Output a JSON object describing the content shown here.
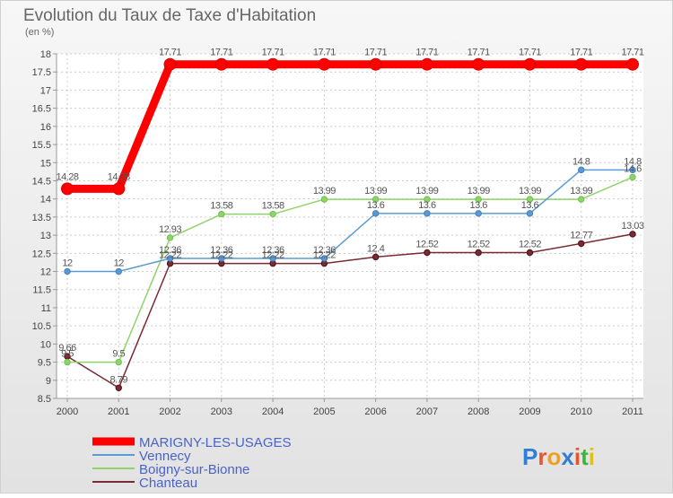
{
  "chart_data": {
    "type": "line",
    "title": "Evolution du Taux de Taxe d'Habitation",
    "subtitle": "(en %)",
    "x": [
      "2000",
      "2001",
      "2002",
      "2003",
      "2004",
      "2005",
      "2006",
      "2007",
      "2008",
      "2009",
      "2010",
      "2011"
    ],
    "yticks": [
      "8.5",
      "9",
      "9.5",
      "10",
      "10.5",
      "11",
      "11.5",
      "12",
      "12.5",
      "13",
      "13.5",
      "14",
      "14.5",
      "15",
      "15.5",
      "16",
      "16.5",
      "17",
      "17.5",
      "18"
    ],
    "ylim": [
      8.5,
      18
    ],
    "grid": true,
    "legend_position": "bottom-left",
    "series": [
      {
        "name": "MARIGNY-LES-USAGES",
        "color": "#ff0000",
        "values": [
          14.28,
          14.28,
          17.71,
          17.71,
          17.71,
          17.71,
          17.71,
          17.71,
          17.71,
          17.71,
          17.71,
          17.71
        ],
        "labels": [
          "14.28",
          "14.28",
          "17.71",
          "17.71",
          "17.71",
          "17.71",
          "17.71",
          "17.71",
          "17.71",
          "17.71",
          "17.71",
          "17.71"
        ]
      },
      {
        "name": "Vennecy",
        "color": "#5b9bd5",
        "values": [
          12,
          12,
          12.36,
          12.36,
          12.36,
          12.36,
          13.6,
          13.6,
          13.6,
          13.6,
          14.8,
          14.8
        ],
        "labels": [
          "12",
          "12",
          "12.36",
          "12.36",
          "12.36",
          "12.36",
          "13.6",
          "13.6",
          "13.6",
          "13.6",
          "14.8",
          "14.8"
        ]
      },
      {
        "name": "Boigny-sur-Bionne",
        "color": "#8fd36b",
        "values": [
          9.5,
          9.5,
          12.93,
          13.58,
          13.58,
          13.99,
          13.99,
          13.99,
          13.99,
          13.99,
          13.99,
          14.6
        ],
        "labels": [
          "9.5",
          "9.5",
          "12.93",
          "13.58",
          "13.58",
          "13.99",
          "13.99",
          "13.99",
          "13.99",
          "13.99",
          "13.99",
          "14.6"
        ]
      },
      {
        "name": "Chanteau",
        "color": "#7a2a33",
        "values": [
          9.66,
          8.79,
          12.22,
          12.22,
          12.22,
          12.22,
          12.4,
          12.52,
          12.52,
          12.52,
          12.77,
          13.03
        ],
        "labels": [
          "9.66",
          "8.79",
          "12.22",
          "12.22",
          "12.22",
          "12.22",
          "12.4",
          "12.52",
          "12.52",
          "12.52",
          "12.77",
          "13.03"
        ]
      }
    ]
  },
  "logo": {
    "text": "Proxiti"
  }
}
